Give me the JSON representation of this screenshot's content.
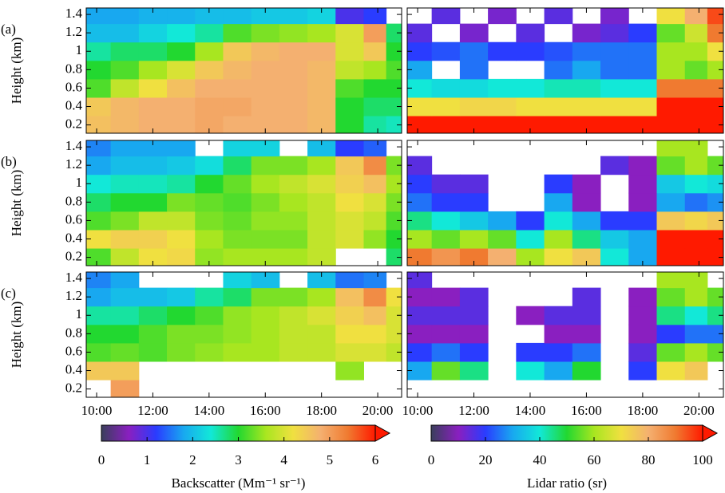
{
  "chart_data": [
    {
      "type": "heatmap",
      "panel_label": "(a)",
      "ylabel": "Height (km)",
      "x": [
        10,
        11,
        12,
        13,
        14,
        15,
        16,
        17,
        18,
        19,
        20,
        20.6
      ],
      "y": [
        0.2,
        0.4,
        0.6,
        0.8,
        1.0,
        1.2,
        1.4
      ],
      "xlim": [
        9.63,
        20.85
      ],
      "ylim": [
        0.11,
        1.47
      ],
      "yticks": [
        0.2,
        0.4,
        0.6,
        0.8,
        1.0,
        1.2,
        1.4
      ],
      "values": [
        [
          4.6,
          4.7,
          4.8,
          4.8,
          4.9,
          4.8,
          4.8,
          4.8,
          4.7,
          3.0,
          2.6,
          2.5
        ],
        [
          4.5,
          4.7,
          4.8,
          4.8,
          4.9,
          4.9,
          4.8,
          4.8,
          4.7,
          3.0,
          2.8,
          2.8
        ],
        [
          3.2,
          3.8,
          4.2,
          4.6,
          4.8,
          4.8,
          4.8,
          4.8,
          4.7,
          3.2,
          3.0,
          3.0
        ],
        [
          3.0,
          3.2,
          3.6,
          4.0,
          4.5,
          4.7,
          4.8,
          4.8,
          4.7,
          3.8,
          3.6,
          3.2
        ],
        [
          2.6,
          2.8,
          2.8,
          3.0,
          3.6,
          4.5,
          4.7,
          4.8,
          4.8,
          4.0,
          4.5,
          3.0
        ],
        [
          2.0,
          2.0,
          2.2,
          2.4,
          2.6,
          3.2,
          3.4,
          3.5,
          3.6,
          4.0,
          5.0,
          2.8
        ],
        [
          1.8,
          1.8,
          1.9,
          1.9,
          2.0,
          2.0,
          2.1,
          2.1,
          2.2,
          1.0,
          1.2,
          null
        ]
      ]
    },
    {
      "type": "heatmap",
      "x": [
        10,
        11,
        12,
        13,
        14,
        15,
        16,
        17,
        18,
        19,
        20,
        20.6
      ],
      "y": [
        0.2,
        0.4,
        0.6,
        0.8,
        1.0,
        1.2,
        1.4
      ],
      "xlim": [
        9.63,
        20.87
      ],
      "ylim": [
        0.11,
        1.47
      ],
      "values": [
        [
          100,
          100,
          100,
          100,
          100,
          100,
          100,
          100,
          100,
          100,
          100,
          100
        ],
        [
          70,
          70,
          72,
          72,
          70,
          70,
          70,
          70,
          70,
          100,
          100,
          100
        ],
        [
          40,
          38,
          38,
          40,
          40,
          42,
          42,
          40,
          40,
          90,
          90,
          90
        ],
        [
          30,
          null,
          25,
          null,
          null,
          25,
          30,
          25,
          25,
          60,
          55,
          60
        ],
        [
          20,
          22,
          25,
          20,
          20,
          22,
          25,
          25,
          25,
          60,
          60,
          70
        ],
        [
          15,
          null,
          12,
          null,
          15,
          null,
          12,
          15,
          20,
          55,
          65,
          90
        ],
        [
          null,
          15,
          null,
          12,
          null,
          15,
          null,
          12,
          null,
          70,
          80,
          95
        ]
      ]
    },
    {
      "type": "heatmap",
      "panel_label": "(b)",
      "ylabel": "Height (km)",
      "x": [
        10,
        11,
        12,
        13,
        14,
        15,
        16,
        17,
        18,
        19,
        20,
        20.6
      ],
      "y": [
        0.2,
        0.4,
        0.6,
        0.8,
        1.0,
        1.2,
        1.4
      ],
      "xlim": [
        9.63,
        20.85
      ],
      "ylim": [
        0.11,
        1.47
      ],
      "yticks": [
        0.2,
        0.4,
        0.6,
        0.8,
        1.0,
        1.2,
        1.4
      ],
      "values": [
        [
          3.2,
          3.8,
          4.2,
          4.3,
          3.5,
          3.6,
          3.6,
          3.6,
          3.8,
          null,
          null,
          2.8
        ],
        [
          4.2,
          4.4,
          4.4,
          4.2,
          3.6,
          3.4,
          3.4,
          3.4,
          3.8,
          4.0,
          3.5,
          3.0
        ],
        [
          3.2,
          3.4,
          3.8,
          3.8,
          3.4,
          3.3,
          3.5,
          3.5,
          3.8,
          4.0,
          3.8,
          3.2
        ],
        [
          2.8,
          3.0,
          3.0,
          3.4,
          3.3,
          3.2,
          3.4,
          3.6,
          3.8,
          4.2,
          4.0,
          3.4
        ],
        [
          2.4,
          2.5,
          2.5,
          2.6,
          3.0,
          3.3,
          3.6,
          3.8,
          4.0,
          4.4,
          4.6,
          3.6
        ],
        [
          1.8,
          2.0,
          2.0,
          2.1,
          2.3,
          2.8,
          3.4,
          3.4,
          3.6,
          4.5,
          5.2,
          3.4
        ],
        [
          1.6,
          1.8,
          1.8,
          1.8,
          null,
          2.2,
          2.2,
          null,
          2.0,
          1.2,
          1.4,
          null
        ]
      ]
    },
    {
      "type": "heatmap",
      "x": [
        10,
        11,
        12,
        13,
        14,
        15,
        16,
        17,
        18,
        19,
        20,
        20.6
      ],
      "y": [
        0.2,
        0.4,
        0.6,
        0.8,
        1.0,
        1.2,
        1.4
      ],
      "xlim": [
        9.63,
        20.87
      ],
      "ylim": [
        0.11,
        1.47
      ],
      "values": [
        [
          90,
          85,
          90,
          80,
          60,
          70,
          75,
          40,
          30,
          100,
          100,
          100
        ],
        [
          60,
          55,
          60,
          55,
          40,
          60,
          45,
          35,
          30,
          100,
          100,
          100
        ],
        [
          45,
          40,
          35,
          30,
          20,
          40,
          30,
          20,
          20,
          75,
          72,
          75
        ],
        [
          25,
          20,
          20,
          null,
          null,
          30,
          10,
          null,
          10,
          30,
          25,
          28
        ],
        [
          20,
          15,
          15,
          null,
          null,
          20,
          10,
          null,
          10,
          35,
          40,
          38
        ],
        [
          15,
          null,
          null,
          null,
          null,
          null,
          null,
          15,
          10,
          55,
          60,
          55
        ],
        [
          null,
          null,
          null,
          null,
          null,
          null,
          null,
          null,
          null,
          60,
          60,
          null
        ]
      ]
    },
    {
      "type": "heatmap",
      "panel_label": "(c)",
      "ylabel": "Height (km)",
      "x": [
        10,
        11,
        12,
        13,
        14,
        15,
        16,
        17,
        18,
        19,
        20,
        20.6
      ],
      "y": [
        0.2,
        0.4,
        0.6,
        0.8,
        1.0,
        1.2,
        1.4
      ],
      "xlim": [
        9.63,
        20.85
      ],
      "ylim": [
        0.11,
        1.47
      ],
      "yticks": [
        0.2,
        0.4,
        0.6,
        0.8,
        1.0,
        1.2,
        1.4
      ],
      "xticks": [
        {
          "value": 10,
          "label": "10:00"
        },
        {
          "value": 12,
          "label": "12:00"
        },
        {
          "value": 14,
          "label": "14:00"
        },
        {
          "value": 16,
          "label": "16:00"
        },
        {
          "value": 18,
          "label": "18:00"
        },
        {
          "value": 20,
          "label": "20:00"
        }
      ],
      "values": [
        [
          null,
          5,
          null,
          null,
          null,
          null,
          null,
          null,
          null,
          null,
          null,
          null
        ],
        [
          4.5,
          4.5,
          null,
          null,
          null,
          null,
          null,
          null,
          null,
          3.5,
          null,
          null
        ],
        [
          3.2,
          3.3,
          3.2,
          3.4,
          3.5,
          3.6,
          3.6,
          3.8,
          3.8,
          4.0,
          4.0,
          3.8
        ],
        [
          3.0,
          3.0,
          3.2,
          3.4,
          3.4,
          3.5,
          3.6,
          3.8,
          3.8,
          4.2,
          4.2,
          4.0
        ],
        [
          2.6,
          2.6,
          2.8,
          3.0,
          3.2,
          3.5,
          3.6,
          3.8,
          4.0,
          4.4,
          4.6,
          4.0
        ],
        [
          1.8,
          2.0,
          2.0,
          2.1,
          2.6,
          2.8,
          3.4,
          3.4,
          3.6,
          4.6,
          5.2,
          4.2
        ],
        [
          1.6,
          1.8,
          null,
          null,
          null,
          2.2,
          2.0,
          null,
          2.0,
          1.5,
          1.6,
          null
        ]
      ]
    },
    {
      "type": "heatmap",
      "x": [
        10,
        11,
        12,
        13,
        14,
        15,
        16,
        17,
        18,
        19,
        20,
        20.6
      ],
      "y": [
        0.2,
        0.4,
        0.6,
        0.8,
        1.0,
        1.2,
        1.4
      ],
      "xlim": [
        9.63,
        20.87
      ],
      "ylim": [
        0.11,
        1.47
      ],
      "xticks": [
        {
          "value": 10,
          "label": "10:00"
        },
        {
          "value": 12,
          "label": "12:00"
        },
        {
          "value": 14,
          "label": "14:00"
        },
        {
          "value": 16,
          "label": "16:00"
        },
        {
          "value": 18,
          "label": "18:00"
        },
        {
          "value": 20,
          "label": "20:00"
        }
      ],
      "values": [
        [
          null,
          null,
          null,
          null,
          null,
          null,
          null,
          null,
          null,
          null,
          null,
          null
        ],
        [
          30,
          55,
          45,
          null,
          40,
          30,
          50,
          null,
          20,
          70,
          75,
          null
        ],
        [
          20,
          25,
          20,
          null,
          20,
          20,
          25,
          null,
          15,
          55,
          60,
          55
        ],
        [
          10,
          10,
          10,
          null,
          null,
          10,
          10,
          null,
          10,
          20,
          25,
          25
        ],
        [
          15,
          15,
          15,
          null,
          10,
          15,
          15,
          null,
          10,
          45,
          40,
          45
        ],
        [
          10,
          10,
          15,
          null,
          null,
          null,
          15,
          null,
          10,
          55,
          60,
          55
        ],
        [
          15,
          null,
          null,
          null,
          null,
          null,
          null,
          null,
          null,
          60,
          60,
          null
        ]
      ]
    },
    {
      "type": "colorbar",
      "label": "Backscatter (Mm⁻¹ sr⁻¹)",
      "zlim": [
        0,
        6
      ],
      "ticks": [
        0,
        1,
        2,
        3,
        4,
        5,
        6
      ],
      "colors": [
        "#3a3f5c",
        "#8a1fc0",
        "#2a3cff",
        "#18a8f0",
        "#12e8d8",
        "#22d830",
        "#a8e620",
        "#f0e040",
        "#f4b070",
        "#f07a30",
        "#ff1a00"
      ]
    },
    {
      "type": "colorbar",
      "label": "Lidar ratio (sr)",
      "zlim": [
        0,
        100
      ],
      "ticks": [
        0,
        20,
        40,
        60,
        80,
        100
      ],
      "colors": [
        "#3a3f5c",
        "#8a1fc0",
        "#2a3cff",
        "#18a8f0",
        "#12e8d8",
        "#22d830",
        "#a8e620",
        "#f0e040",
        "#f4b070",
        "#f07a30",
        "#ff1a00"
      ]
    }
  ]
}
